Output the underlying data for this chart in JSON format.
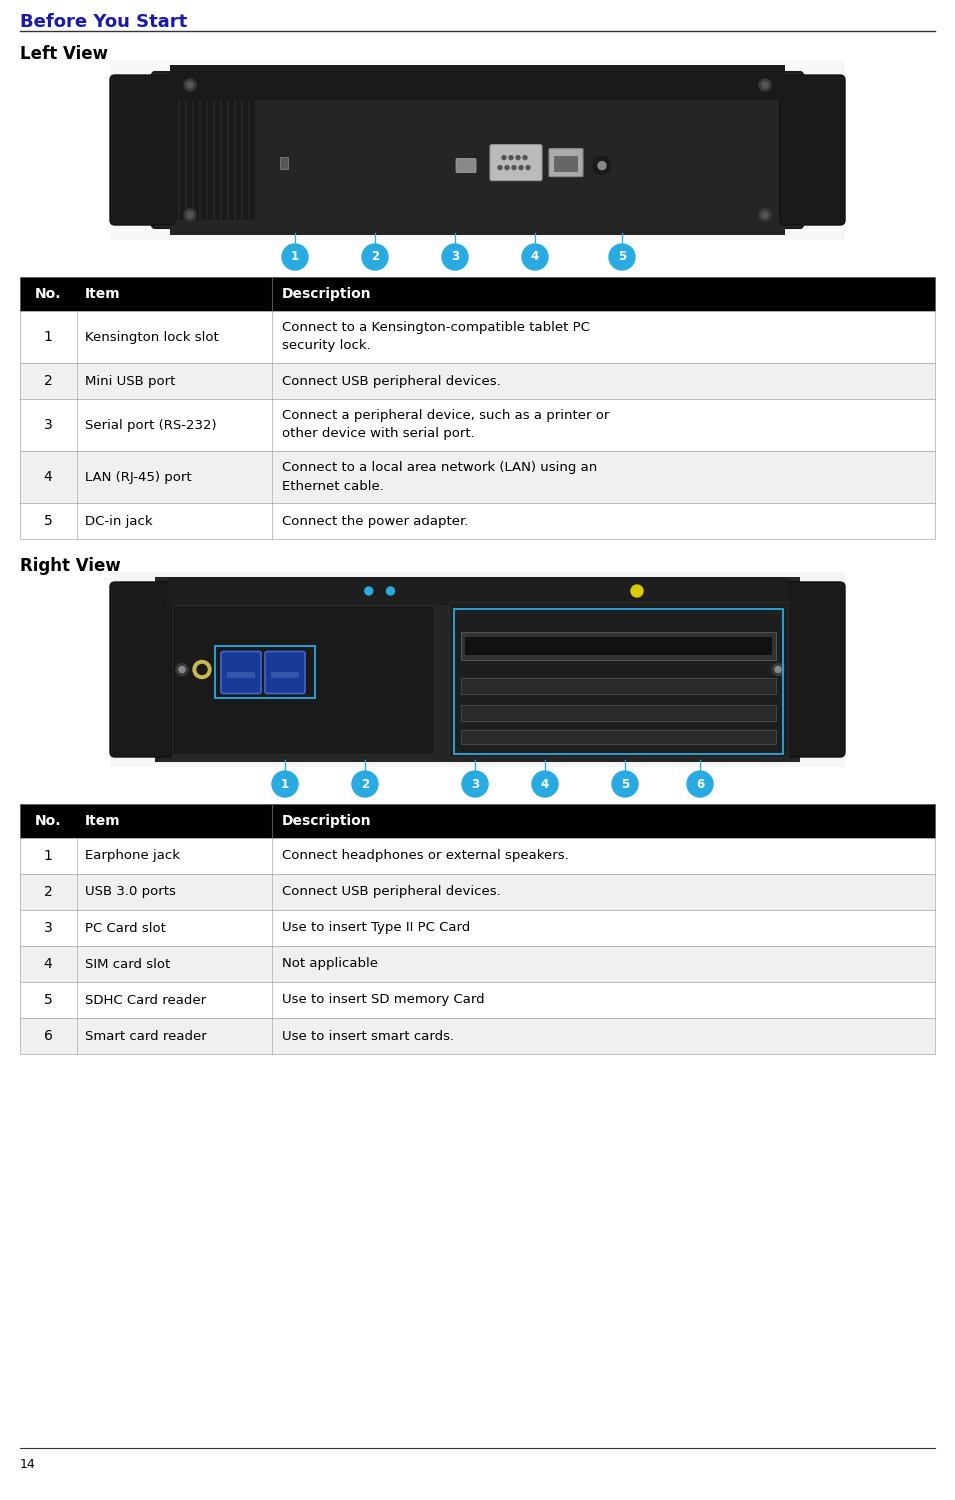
{
  "page_title": "Before You Start",
  "page_number": "14",
  "bg_color": "#ffffff",
  "title_color": "#1a1aaa",
  "header_bg": "#000000",
  "header_fg": "#ffffff",
  "border_color": "#aaaaaa",
  "section1_title": "Left View",
  "section2_title": "Right View",
  "table1_headers": [
    "No.",
    "Item",
    "Description"
  ],
  "table1_rows": [
    [
      "1",
      "Kensington lock slot",
      "Connect to a Kensington-compatible tablet PC\nsecurity lock."
    ],
    [
      "2",
      "Mini USB port",
      "Connect USB peripheral devices."
    ],
    [
      "3",
      "Serial port (RS-232)",
      "Connect a peripheral device, such as a printer or\nother device with serial port."
    ],
    [
      "4",
      "LAN (RJ-45) port",
      "Connect to a local area network (LAN) using an\nEthernet cable."
    ],
    [
      "5",
      "DC-in jack",
      "Connect the power adapter."
    ]
  ],
  "table2_headers": [
    "No.",
    "Item",
    "Description"
  ],
  "table2_rows": [
    [
      "1",
      "Earphone jack",
      "Connect headphones or external speakers."
    ],
    [
      "2",
      "USB 3.0 ports",
      "Connect USB peripheral devices."
    ],
    [
      "3",
      "PC Card slot",
      "Use to insert Type II PC Card"
    ],
    [
      "4",
      "SIM card slot",
      "Not applicable"
    ],
    [
      "5",
      "SDHC Card reader",
      "Use to insert SD memory Card"
    ],
    [
      "6",
      "Smart card reader",
      "Use to insert smart cards."
    ]
  ],
  "teal_color": "#29abe2",
  "line_color": "#000000",
  "font_size_title": 13,
  "font_size_section": 12,
  "font_size_table": 9.5,
  "font_size_header": 10,
  "font_size_pagenumber": 9
}
